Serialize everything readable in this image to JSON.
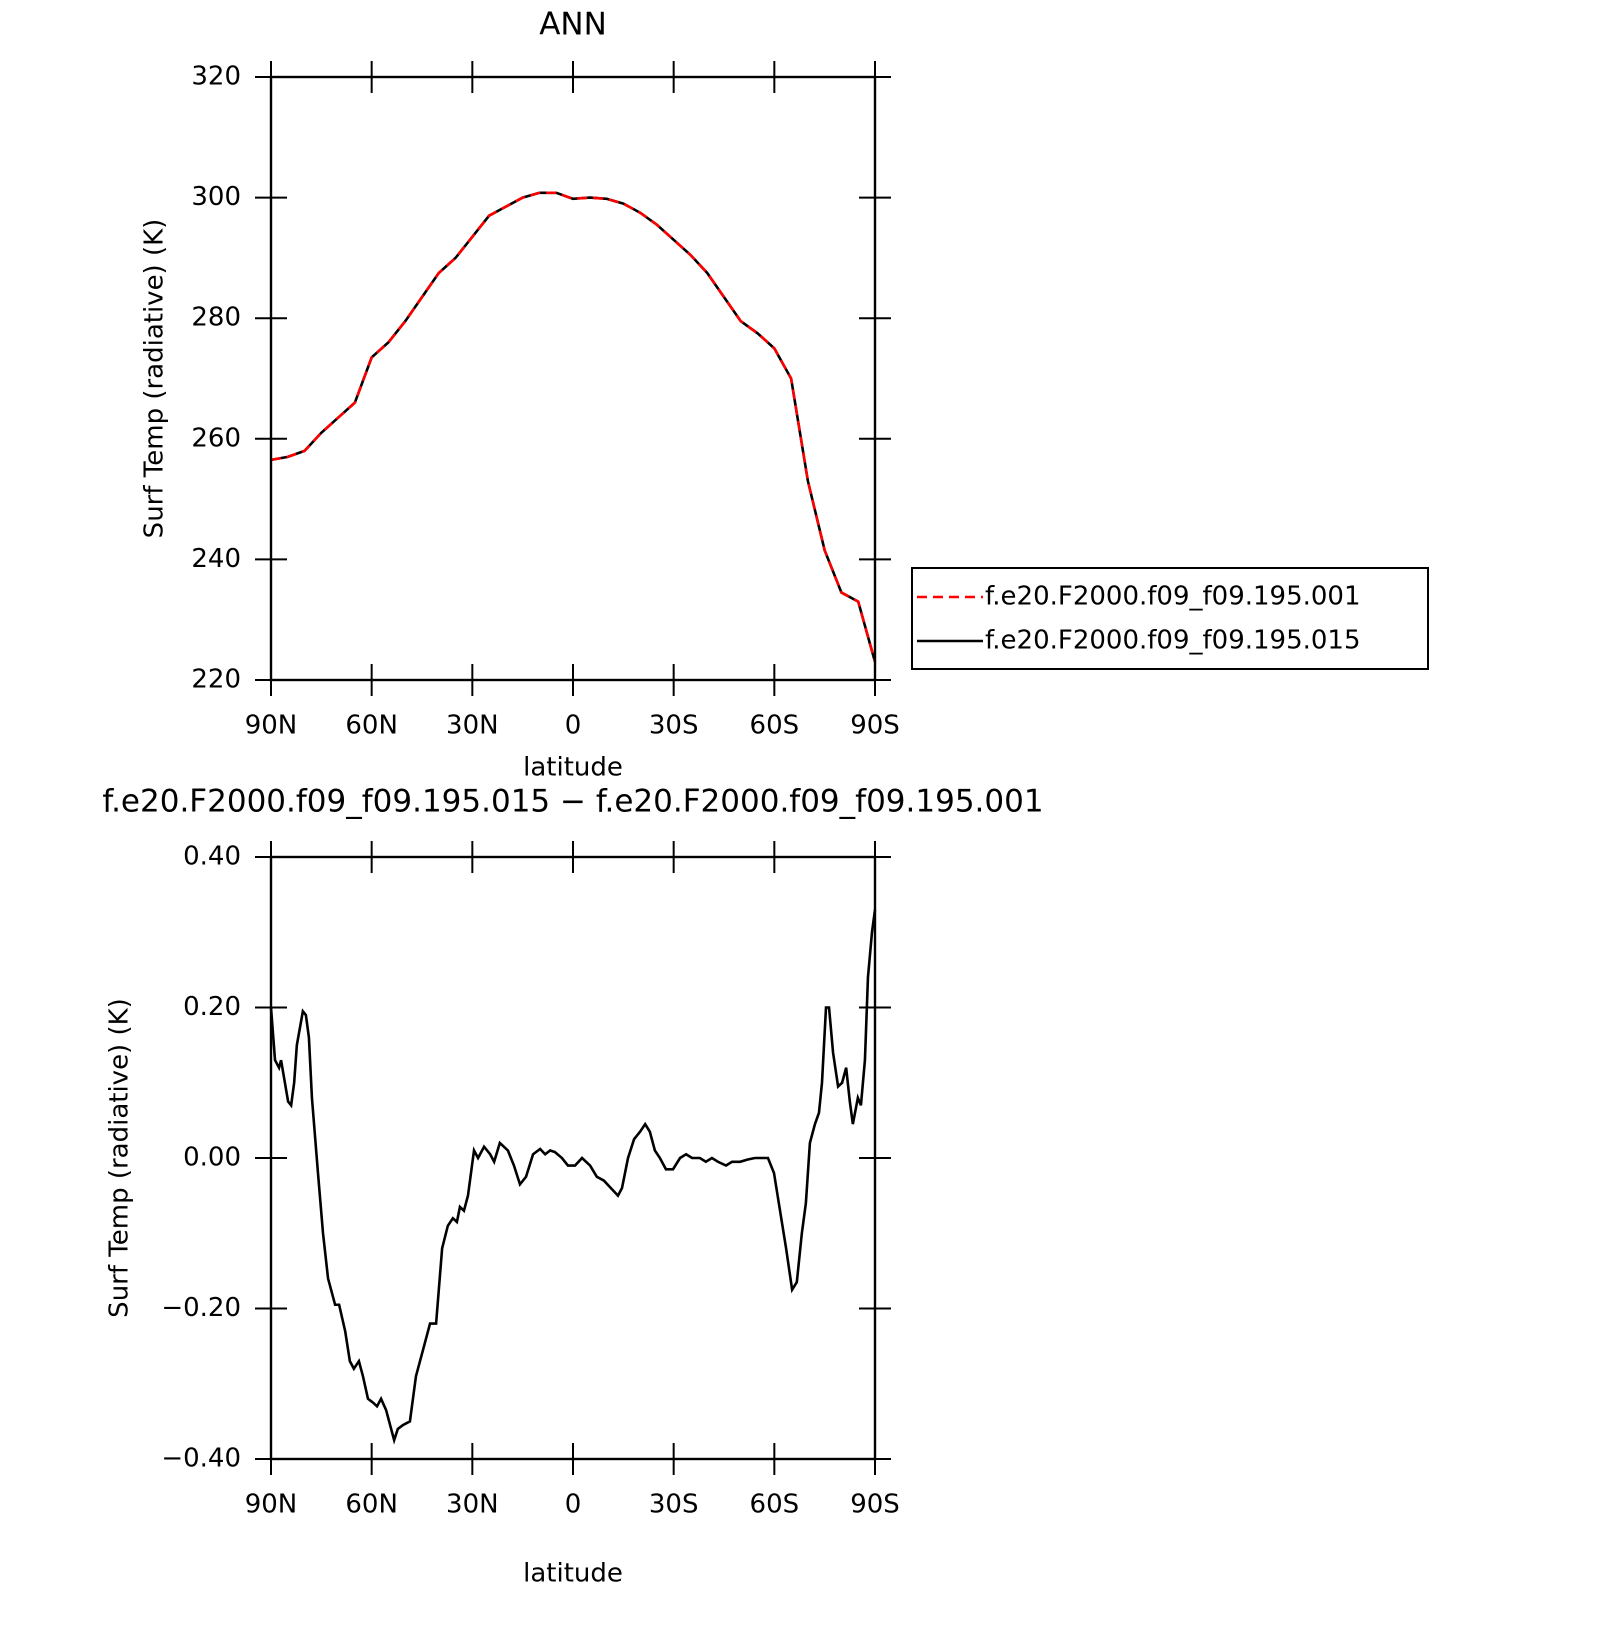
{
  "chart_data": [
    {
      "type": "line",
      "title": "ANN",
      "xlabel": "latitude",
      "ylabel": "Surf Temp (radiative) (K)",
      "xlim": [
        90,
        -90
      ],
      "xticks": [
        {
          "value": 90,
          "label": "90N"
        },
        {
          "value": 60,
          "label": "60N"
        },
        {
          "value": 30,
          "label": "30N"
        },
        0,
        {
          "value": -30,
          "label": "30S"
        },
        {
          "value": -60,
          "label": "60S"
        },
        {
          "value": -90,
          "label": "90S"
        }
      ],
      "ylim": [
        220,
        320
      ],
      "yticks": [
        220,
        240,
        260,
        280,
        300,
        320
      ],
      "x": [
        90,
        85,
        80,
        75,
        70,
        65,
        60,
        55,
        50,
        45,
        40,
        35,
        30,
        25,
        20,
        15,
        10,
        5,
        0,
        -5,
        -10,
        -15,
        -20,
        -25,
        -30,
        -35,
        -40,
        -45,
        -50,
        -55,
        -60,
        -65,
        -70,
        -75,
        -80,
        -85,
        -90
      ],
      "series": [
        {
          "name": "f.e20.F2000.f09_f09.195.001",
          "color": "#ff0000",
          "linestyle": "dashed",
          "values": [
            256.5,
            257,
            258,
            261,
            263.5,
            266,
            273.5,
            276,
            279.5,
            283.5,
            287.5,
            290,
            293.5,
            297,
            298.5,
            300,
            300.8,
            300.8,
            299.8,
            300,
            299.8,
            299,
            297.5,
            295.5,
            293,
            290.5,
            287.5,
            283.5,
            279.5,
            277.5,
            275,
            270,
            253,
            241.5,
            234.5,
            233,
            223
          ]
        },
        {
          "name": "f.e20.F2000.f09_f09.195.015",
          "color": "#000000",
          "linestyle": "solid",
          "values": [
            256.5,
            257,
            258,
            261,
            263.5,
            266,
            273.5,
            276,
            279.5,
            283.5,
            287.5,
            290,
            293.5,
            297,
            298.5,
            300,
            300.8,
            300.8,
            299.8,
            300,
            299.8,
            299,
            297.5,
            295.5,
            293,
            290.5,
            287.5,
            283.5,
            279.5,
            277.5,
            275,
            270,
            253,
            241.5,
            234.5,
            233,
            223
          ]
        }
      ]
    },
    {
      "type": "line",
      "title": "f.e20.F2000.f09_f09.195.015 − f.e20.F2000.f09_f09.195.001",
      "xlabel": "latitude",
      "ylabel": "Surf Temp (radiative) (K)",
      "xlim": [
        90,
        -90
      ],
      "xticks": [
        {
          "value": 90,
          "label": "90N"
        },
        {
          "value": 60,
          "label": "60N"
        },
        {
          "value": 30,
          "label": "30N"
        },
        0,
        {
          "value": -30,
          "label": "30S"
        },
        {
          "value": -60,
          "label": "60S"
        },
        {
          "value": -90,
          "label": "90S"
        }
      ],
      "ylim": [
        -0.4,
        0.4
      ],
      "yticks": [
        {
          "value": -0.4,
          "label": "−0.40"
        },
        {
          "value": -0.2,
          "label": "−0.20"
        },
        {
          "value": 0,
          "label": "0.00"
        },
        {
          "value": 0.2,
          "label": "0.20"
        },
        {
          "value": 0.4,
          "label": "0.40"
        }
      ],
      "x": [
        90,
        88.8,
        87.6,
        87.0,
        84.9,
        84.0,
        83.1,
        82.3,
        80.5,
        79.6,
        78.7,
        77.8,
        76.0,
        74.5,
        73.0,
        70.9,
        69.7,
        67.9,
        66.5,
        65.3,
        63.8,
        62.6,
        61.1,
        59.6,
        58.4,
        57.2,
        55.7,
        53.3,
        52.2,
        50.7,
        48.6,
        46.8,
        45.0,
        42.6,
        40.8,
        39.0,
        37.3,
        35.8,
        34.6,
        33.7,
        32.5,
        31.3,
        29.5,
        28.3,
        26.5,
        24.7,
        23.5,
        21.8,
        19.4,
        17.6,
        15.8,
        14.0,
        11.9,
        9.8,
        8.3,
        6.8,
        5.4,
        3.3,
        1.5,
        -0.6,
        -2.7,
        -5.1,
        -7.1,
        -9.2,
        -11.3,
        -13.4,
        -14.6,
        -16.4,
        -18.2,
        -20.0,
        -21.5,
        -22.9,
        -24.4,
        -25.9,
        -27.7,
        -29.8,
        -31.9,
        -33.7,
        -35.5,
        -37.8,
        -39.6,
        -41.4,
        -43.2,
        -45.6,
        -47.4,
        -49.8,
        -52.1,
        -54.2,
        -55.7,
        -58.1,
        -59.9,
        -61.7,
        -63.5,
        -65.3,
        -66.7,
        -68.2,
        -69.4,
        -70.6,
        -72.1,
        -73.3,
        -74.2,
        -75.4,
        -76.3,
        -77.5,
        -79.0,
        -80.2,
        -81.4,
        -82.5,
        -83.4,
        -84.9,
        -85.8,
        -87.0,
        -87.9,
        -89.1,
        -90.0
      ],
      "series": [
        {
          "color": "#000000",
          "linestyle": "solid",
          "values": [
            0.2,
            0.13,
            0.12,
            0.13,
            0.075,
            0.07,
            0.1,
            0.15,
            0.195,
            0.19,
            0.16,
            0.08,
            -0.02,
            -0.1,
            -0.16,
            -0.195,
            -0.195,
            -0.23,
            -0.27,
            -0.28,
            -0.27,
            -0.29,
            -0.32,
            -0.325,
            -0.33,
            -0.32,
            -0.335,
            -0.375,
            -0.36,
            -0.355,
            -0.35,
            -0.29,
            -0.26,
            -0.22,
            -0.22,
            -0.12,
            -0.09,
            -0.08,
            -0.085,
            -0.065,
            -0.07,
            -0.05,
            0.01,
            0.0,
            0.015,
            0.005,
            -0.005,
            0.02,
            0.01,
            -0.01,
            -0.035,
            -0.025,
            0.005,
            0.012,
            0.005,
            0.01,
            0.008,
            0.0,
            -0.01,
            -0.01,
            0.0,
            -0.01,
            -0.025,
            -0.03,
            -0.04,
            -0.05,
            -0.04,
            0.0,
            0.025,
            0.035,
            0.045,
            0.035,
            0.01,
            0.0,
            -0.015,
            -0.015,
            0.0,
            0.005,
            0.0,
            0.0,
            -0.005,
            0.0,
            -0.005,
            -0.01,
            -0.005,
            -0.005,
            -0.002,
            0.0,
            0.0,
            0.0,
            -0.02,
            -0.07,
            -0.12,
            -0.175,
            -0.165,
            -0.1,
            -0.06,
            0.02,
            0.045,
            0.06,
            0.1,
            0.2,
            0.2,
            0.14,
            0.095,
            0.1,
            0.12,
            0.075,
            0.045,
            0.08,
            0.07,
            0.13,
            0.24,
            0.3,
            0.33
          ]
        }
      ]
    }
  ]
}
